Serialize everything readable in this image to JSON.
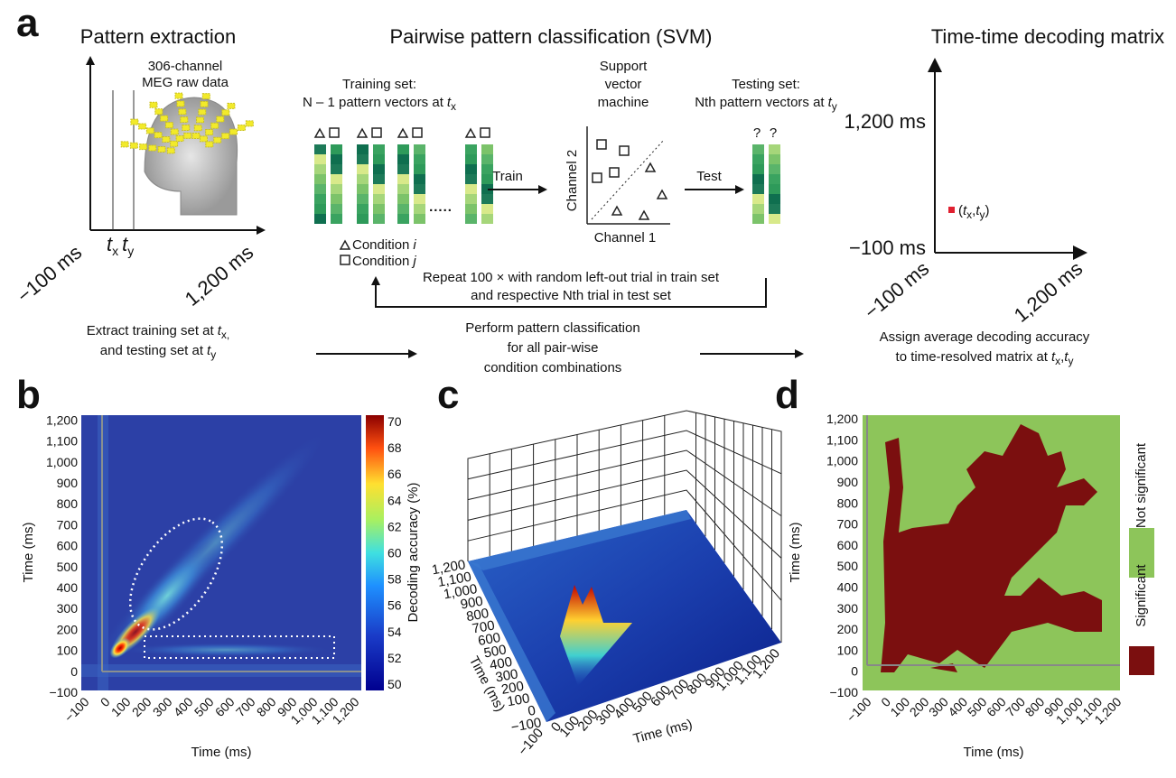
{
  "panel_a": {
    "label": "a",
    "titles": [
      "Pattern extraction",
      "Pairwise pattern classification (SVM)",
      "Time-time decoding matrix"
    ],
    "meg": [
      "306-channel",
      "MEG raw data"
    ],
    "extract_axis": {
      "start": "−100 ms",
      "end": "1,200 ms",
      "times": [
        "t",
        "x",
        "t",
        "y"
      ]
    },
    "training": [
      "Training set:",
      "N – 1 pattern vectors at",
      "t",
      "x"
    ],
    "svm": [
      "Support",
      "vector",
      "machine"
    ],
    "testing": [
      "Testing set:",
      "Nth pattern vectors at",
      "t",
      "y"
    ],
    "unknown": [
      "?",
      "?"
    ],
    "dots": ".....",
    "train": "Train",
    "test": "Test",
    "channels": [
      "Channel 1",
      "Channel 2"
    ],
    "conditions": [
      [
        "Condition",
        "i"
      ],
      [
        "Condition",
        "j"
      ]
    ],
    "repeat": [
      "Repeat 100 × with random left-out trial in train set",
      "and respective Nth trial in test set"
    ],
    "matrix_axis": {
      "y_top": "1,200 ms",
      "y_bottom": "−100 ms",
      "x_start": "−100 ms",
      "x_end": "1,200 ms"
    },
    "point": [
      "(",
      "t",
      "x",
      ",",
      "t",
      "y",
      ")"
    ],
    "steps": [
      [
        "Extract training set at",
        "t",
        "x,",
        "and testing set at",
        "t",
        "y"
      ],
      [
        "Perform pattern classification",
        "for all pair-wise",
        "condition combinations"
      ],
      [
        "Assign average decoding accuracy",
        "to time-resolved matrix at",
        "t",
        "x",
        ",",
        "t",
        "y"
      ]
    ]
  },
  "panel_b": {
    "label": "b",
    "ylabel": "Time (ms)",
    "xlabel": "Time (ms)",
    "ticks": [
      "−100",
      "0",
      "100",
      "200",
      "300",
      "400",
      "500",
      "600",
      "700",
      "800",
      "900",
      "1,000",
      "1,100",
      "1,200"
    ],
    "colorbar_label": "Decoding accuracy (%)",
    "colorbar_ticks": [
      "70",
      "68",
      "66",
      "64",
      "62",
      "60",
      "58",
      "56",
      "54",
      "52",
      "50"
    ]
  },
  "panel_c": {
    "label": "c",
    "ylabel": "Time (ms)",
    "xlabel": "Time (ms)",
    "ticks": [
      "−100",
      "0",
      "100",
      "200",
      "300",
      "400",
      "500",
      "600",
      "700",
      "800",
      "900",
      "1,000",
      "1,100",
      "1,200"
    ]
  },
  "panel_d": {
    "label": "d",
    "ylabel": "Time (ms)",
    "xlabel": "Time (ms)",
    "ticks": [
      "−100",
      "0",
      "100",
      "200",
      "300",
      "400",
      "500",
      "600",
      "700",
      "800",
      "900",
      "1,000",
      "1,100",
      "1,200"
    ],
    "legend": [
      {
        "name": "Not significant",
        "color": "#8dc55a"
      },
      {
        "name": "Significant",
        "color": "#7b0f0f"
      }
    ]
  }
}
